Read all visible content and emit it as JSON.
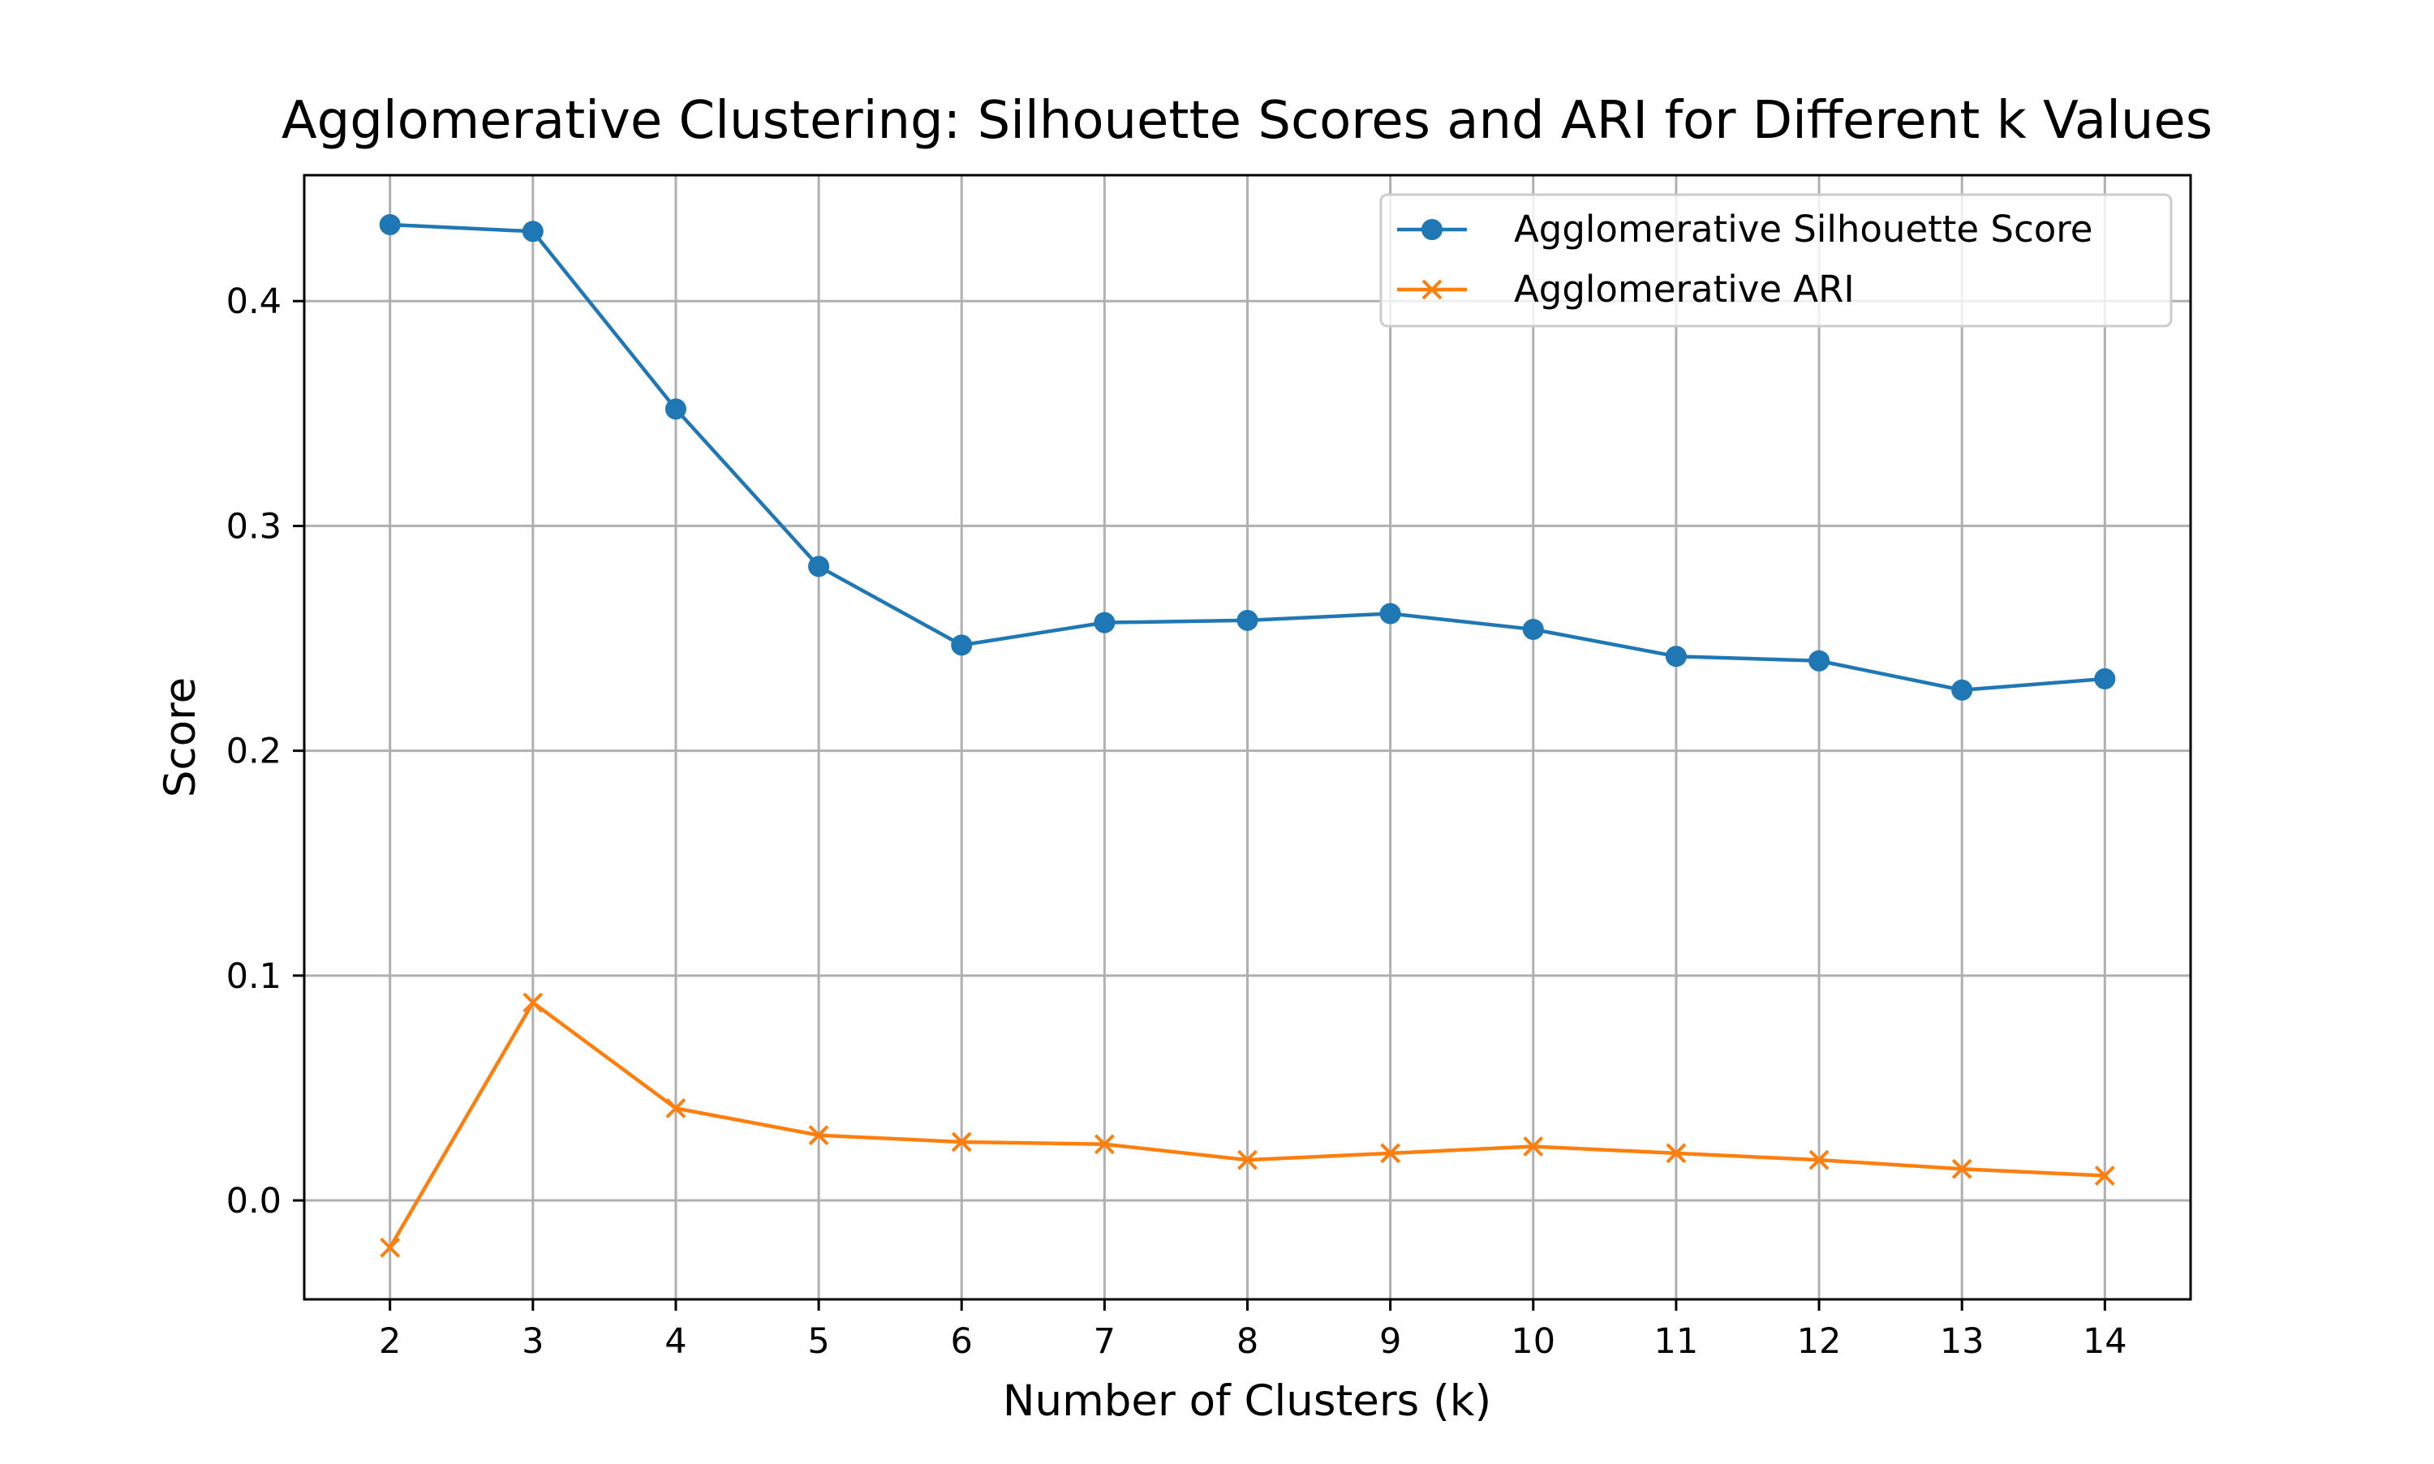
{
  "chart_data": {
    "type": "line",
    "title": "Agglomerative Clustering: Silhouette Scores and ARI for Different k Values",
    "xlabel": "Number of Clusters (k)",
    "ylabel": "Score",
    "x": [
      2,
      3,
      4,
      5,
      6,
      7,
      8,
      9,
      10,
      11,
      12,
      13,
      14
    ],
    "x_ticks": [
      "2",
      "3",
      "4",
      "5",
      "6",
      "7",
      "8",
      "9",
      "10",
      "11",
      "12",
      "13",
      "14"
    ],
    "y_ticks": [
      "0.0",
      "0.1",
      "0.2",
      "0.3",
      "0.4"
    ],
    "xlim": [
      1.4,
      14.6
    ],
    "ylim": [
      -0.044,
      0.456
    ],
    "grid": true,
    "legend_position": "upper right",
    "series": [
      {
        "name": "Agglomerative Silhouette Score",
        "marker": "circle",
        "color": "#1f77b4",
        "values": [
          0.434,
          0.431,
          0.352,
          0.282,
          0.247,
          0.257,
          0.258,
          0.261,
          0.254,
          0.242,
          0.24,
          0.227,
          0.232
        ]
      },
      {
        "name": "Agglomerative ARI",
        "marker": "x",
        "color": "#ff7f0e",
        "values": [
          -0.021,
          0.088,
          0.041,
          0.029,
          0.026,
          0.025,
          0.018,
          0.021,
          0.024,
          0.021,
          0.018,
          0.014,
          0.011
        ]
      }
    ]
  }
}
